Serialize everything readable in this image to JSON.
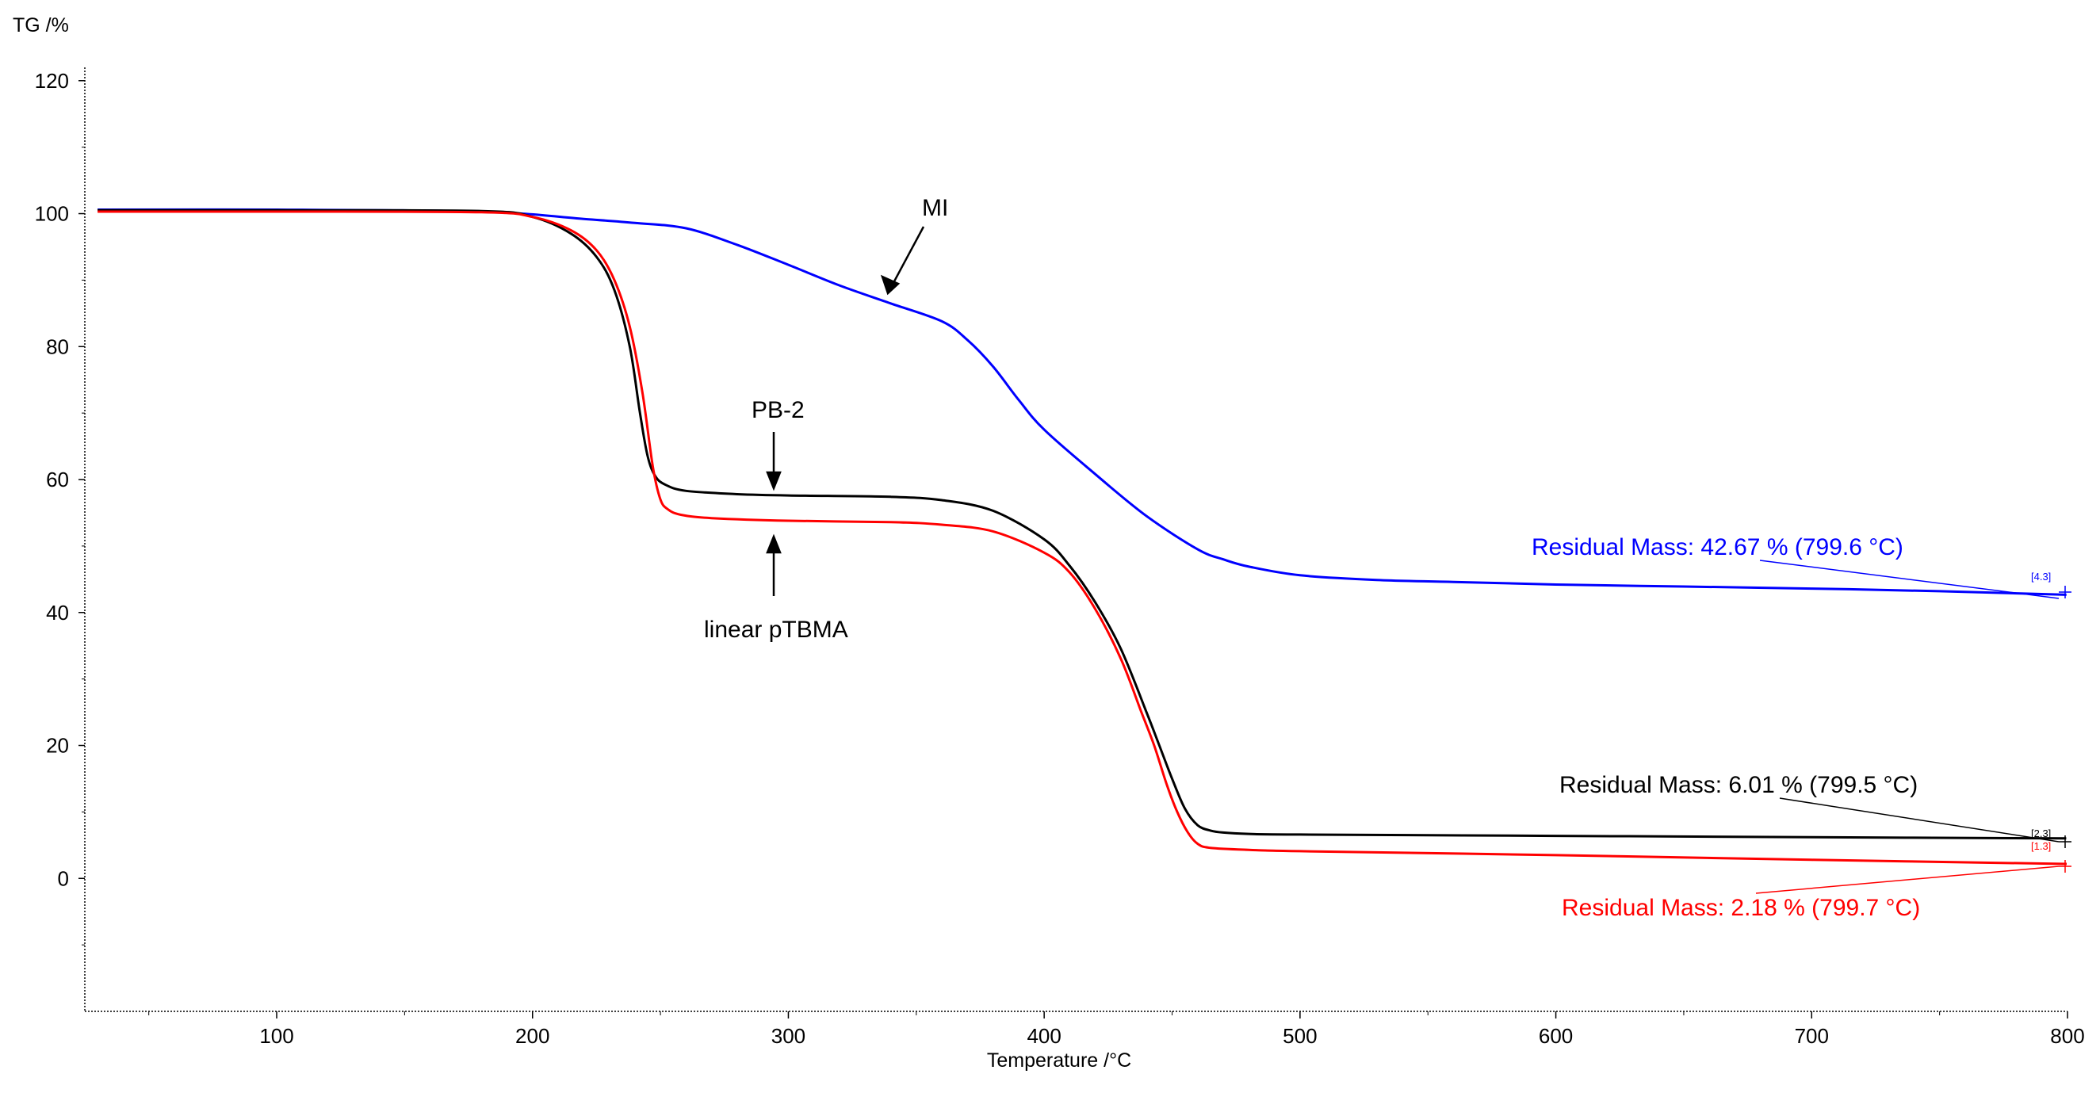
{
  "chart_data": {
    "type": "line",
    "title": "",
    "ylabel": "TG /%",
    "xlabel": "Temperature /°C",
    "xlim": [
      25,
      800
    ],
    "ylim": [
      -20,
      122
    ],
    "xticks": [
      100,
      200,
      300,
      400,
      500,
      600,
      700,
      800
    ],
    "yticks": [
      0,
      20,
      40,
      60,
      80,
      100,
      120
    ],
    "xtick_labels": [
      "100",
      "200",
      "300",
      "400",
      "500",
      "600",
      "700",
      "800"
    ],
    "ytick_labels": [
      "0",
      "20",
      "40",
      "60",
      "80",
      "100",
      "120"
    ],
    "grid": false,
    "series": [
      {
        "name": "MI",
        "color": "#0000ff",
        "x": [
          30,
          100,
          180,
          220,
          240,
          260,
          280,
          300,
          320,
          340,
          360,
          370,
          380,
          390,
          400,
          420,
          440,
          460,
          470,
          480,
          500,
          530,
          560,
          600,
          650,
          700,
          750,
          799.6
        ],
        "y": [
          100.6,
          100.6,
          100.3,
          99.2,
          98.6,
          97.8,
          95.3,
          92.3,
          89.2,
          86.5,
          83.8,
          81.0,
          77.0,
          72.0,
          67.5,
          60.8,
          54.5,
          49.5,
          48.0,
          46.9,
          45.6,
          44.9,
          44.6,
          44.2,
          43.9,
          43.6,
          43.2,
          42.67
        ]
      },
      {
        "name": "PB-2",
        "color": "#000000",
        "x": [
          30,
          100,
          180,
          200,
          215,
          225,
          232,
          238,
          242,
          245,
          248,
          252,
          260,
          280,
          300,
          340,
          360,
          380,
          400,
          410,
          420,
          430,
          440,
          445,
          450,
          455,
          460,
          465,
          470,
          480,
          500,
          600,
          700,
          799.5
        ],
        "y": [
          100.5,
          100.5,
          100.4,
          99.5,
          97.0,
          93.5,
          88.5,
          80.0,
          70.0,
          63.5,
          60.5,
          59.2,
          58.3,
          57.8,
          57.6,
          57.4,
          56.9,
          55.3,
          51.0,
          47.0,
          41.5,
          34.5,
          25.0,
          20.0,
          15.0,
          10.5,
          8.0,
          7.2,
          6.9,
          6.7,
          6.6,
          6.4,
          6.2,
          6.01
        ]
      },
      {
        "name": "linear pTBMA",
        "color": "#ff0000",
        "x": [
          30,
          100,
          180,
          200,
          215,
          225,
          232,
          238,
          243,
          247,
          250,
          253,
          258,
          270,
          300,
          340,
          360,
          380,
          400,
          410,
          420,
          430,
          438,
          443,
          448,
          452,
          456,
          460,
          465,
          480,
          500,
          600,
          700,
          799.7
        ],
        "y": [
          100.3,
          100.3,
          100.2,
          99.5,
          97.5,
          94.5,
          90.0,
          83.0,
          73.0,
          62.0,
          57.0,
          55.5,
          54.7,
          54.2,
          53.8,
          53.6,
          53.2,
          52.2,
          49.0,
          46.0,
          40.5,
          33.0,
          25.0,
          20.0,
          14.0,
          10.0,
          7.0,
          5.2,
          4.6,
          4.3,
          4.1,
          3.5,
          2.8,
          2.18
        ]
      }
    ],
    "annotations": [
      {
        "text": "MI",
        "color": "#000000"
      },
      {
        "text": "PB-2",
        "color": "#000000"
      },
      {
        "text": "linear pTBMA",
        "color": "#000000"
      },
      {
        "text": "Residual Mass: 42.67 % (799.6 °C)",
        "color": "#0000ff"
      },
      {
        "text": "Residual Mass: 6.01 % (799.5 °C)",
        "color": "#000000"
      },
      {
        "text": "Residual Mass: 2.18 % (799.7 °C)",
        "color": "#ff0000"
      }
    ],
    "point_tags": [
      {
        "text": "[4.3]",
        "color": "#0000ff"
      },
      {
        "text": "[2.3]",
        "color": "#000000"
      },
      {
        "text": "[1.3]",
        "color": "#ff0000"
      }
    ]
  }
}
